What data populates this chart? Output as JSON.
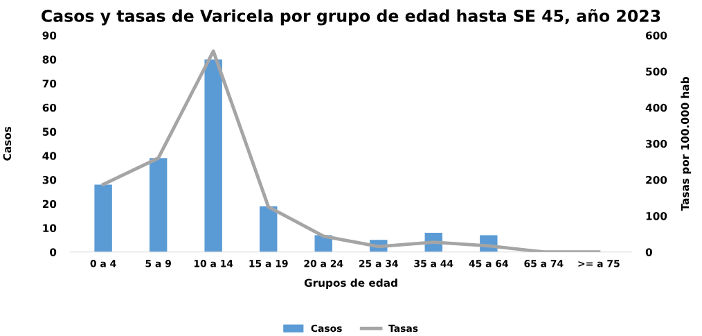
{
  "chart_data": {
    "type": "bar",
    "title": "Casos y tasas de Varicela por grupo de edad hasta SE 45, año 2023",
    "xlabel": "Grupos de edad",
    "ylabel": "Casos",
    "y2label": "Tasas por 100.000 hab",
    "categories": [
      "0 a 4",
      "5 a 9",
      "10 a 14",
      "15 a 19",
      "20 a 24",
      "25 a 34",
      "35 a 44",
      "45 a 64",
      "65 a 74",
      ">= a 75"
    ],
    "series": [
      {
        "name": "Casos",
        "color": "#5b9bd5",
        "values": [
          28,
          39,
          80,
          19,
          7,
          5,
          8,
          7,
          0,
          0
        ]
      },
      {
        "name": "Tasas",
        "type": "line",
        "axis": "y2",
        "color": "#a5a5a5",
        "values": [
          187,
          260,
          556,
          125,
          44,
          15,
          27,
          17,
          0,
          0
        ]
      }
    ],
    "ylim": [
      0,
      90
    ],
    "yticks": [
      0,
      10,
      20,
      30,
      40,
      50,
      60,
      70,
      80,
      90
    ],
    "y2lim": [
      0,
      600
    ],
    "y2ticks": [
      0,
      100,
      200,
      300,
      400,
      500,
      600
    ],
    "grid": false,
    "legend": "bottom",
    "marker": "none",
    "line_style": "solid"
  }
}
